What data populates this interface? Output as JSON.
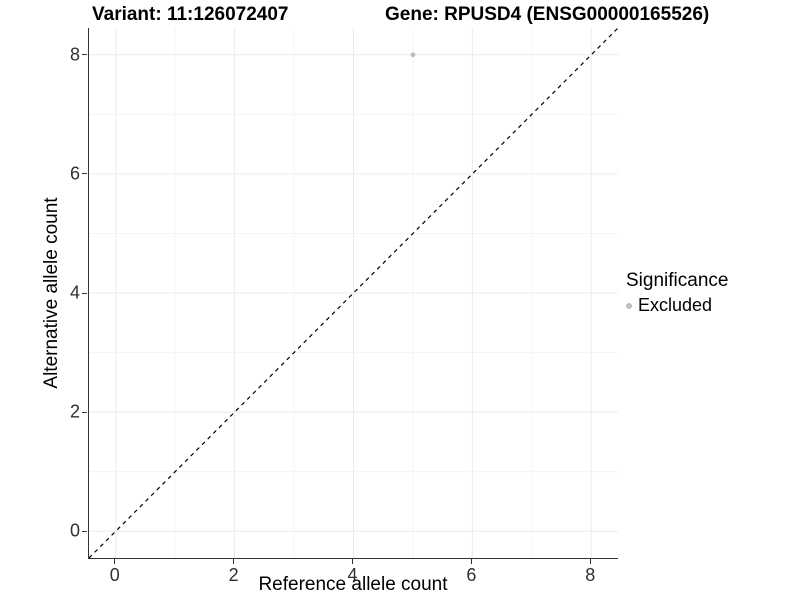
{
  "titles": {
    "variant": "Variant: 11:126072407",
    "gene": "Gene: RPUSD4 (ENSG00000165526)"
  },
  "axes": {
    "x_label": "Reference allele count",
    "y_label": "Alternative allele count"
  },
  "legend": {
    "title": "Significance",
    "items": [
      {
        "label": "Excluded",
        "color": "#bebebe",
        "marker": "dot-icon"
      }
    ]
  },
  "colors": {
    "axis_line": "#333333",
    "tick_text": "#303030",
    "grid_major": "#ebebeb",
    "grid_minor": "#f5f5f5",
    "identity_line": "#000000",
    "point": "#bebebe",
    "background": "#ffffff"
  },
  "chart_data": {
    "type": "scatter",
    "title": "Variant: 11:126072407 | Gene: RPUSD4 (ENSG00000165526)",
    "xlabel": "Reference allele count",
    "ylabel": "Alternative allele count",
    "xlim": [
      -0.45,
      8.45
    ],
    "ylim": [
      -0.45,
      8.45
    ],
    "x_ticks": [
      0,
      2,
      4,
      6,
      8
    ],
    "y_ticks": [
      0,
      2,
      4,
      6,
      8
    ],
    "x_minor_ticks": [
      1,
      3,
      5,
      7
    ],
    "y_minor_ticks": [
      1,
      3,
      5,
      7
    ],
    "grid": true,
    "legend_position": "right",
    "series": [
      {
        "name": "Excluded",
        "color": "#bebebe",
        "points": [
          {
            "x": 5,
            "y": 8
          }
        ]
      }
    ],
    "reference_line": {
      "kind": "identity",
      "slope": 1,
      "intercept": 0,
      "style": "dashed",
      "color": "#000000"
    }
  }
}
